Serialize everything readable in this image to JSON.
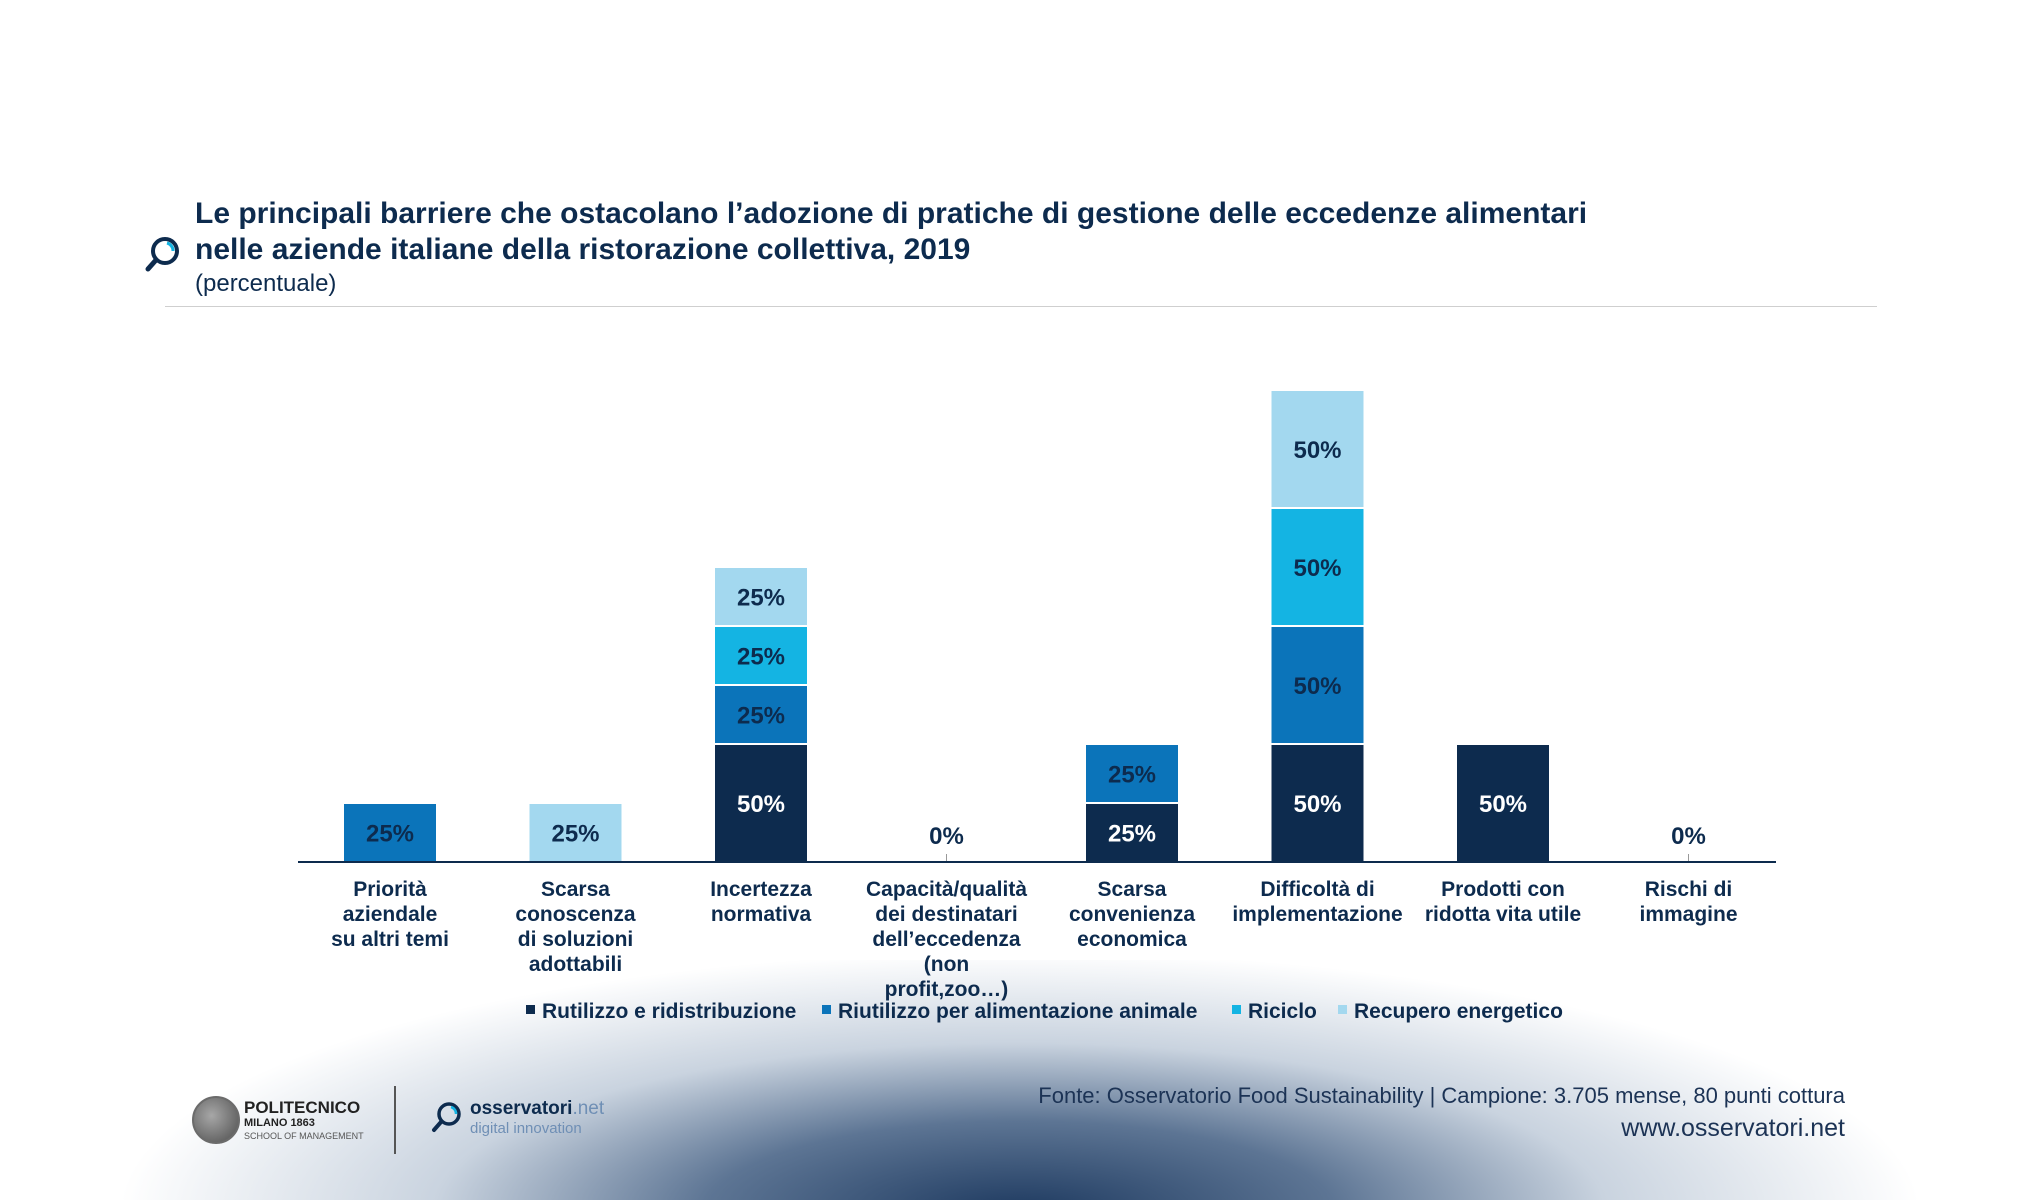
{
  "title": "Le principali barriere che ostacolano l’adozione di pratiche di gestione delle eccedenze alimentari\nnelle aziende italiane della ristorazione collettiva, 2019",
  "subtitle": "(percentuale)",
  "colors": {
    "navy": "#0d2b4e",
    "blue": "#0b74ba",
    "cyan": "#14b4e3",
    "light": "#a3d8ef"
  },
  "chart_data": {
    "type": "bar",
    "stacked": true,
    "title": "Le principali barriere che ostacolano l’adozione di pratiche di gestione delle eccedenze alimentari nelle aziende italiane della ristorazione collettiva, 2019",
    "ylabel": "(percentuale)",
    "categories": [
      "Priorità\naziendale\nsu altri temi",
      "Scarsa\nconoscenza\ndi soluzioni\nadottabili",
      "Incertezza\nnormativa",
      "Capacità/qualità\ndei destinatari\ndell’eccedenza\n(non\nprofit,zoo…)",
      "Scarsa\nconvenienza\neconomica",
      "Difficoltà di\nimplementazione",
      "Prodotti con\nridotta vita utile",
      "Rischi di\nimmagine"
    ],
    "series": [
      {
        "name": "Rutilizzo e ridistribuzione",
        "color": "#0d2b4e",
        "values": [
          0,
          0,
          50,
          0,
          25,
          50,
          50,
          0
        ]
      },
      {
        "name": "Riutilizzo per alimentazione animale",
        "color": "#0b74ba",
        "values": [
          25,
          0,
          25,
          0,
          25,
          50,
          0,
          0
        ]
      },
      {
        "name": "Riciclo",
        "color": "#14b4e3",
        "values": [
          0,
          0,
          25,
          0,
          0,
          50,
          0,
          0
        ]
      },
      {
        "name": "Recupero energetico",
        "color": "#a3d8ef",
        "values": [
          0,
          25,
          25,
          0,
          0,
          50,
          0,
          0
        ]
      }
    ],
    "zero_labels": [
      "",
      "",
      "",
      "0%",
      "",
      "",
      "",
      "0%"
    ],
    "ylim": [
      0,
      200
    ],
    "legend_position": "bottom"
  },
  "footer": {
    "source": "Fonte: Osservatorio Food Sustainability | Campione: 3.705 mense, 80 punti cottura",
    "website": "www.osservatori.net",
    "polimi_name": "POLITECNICO",
    "polimi_sub": "MILANO 1863",
    "polimi_school": "SCHOOL OF MANAGEMENT",
    "oss_name": "osservatori",
    "oss_suffix": ".net",
    "oss_tag": "digital innovation"
  }
}
